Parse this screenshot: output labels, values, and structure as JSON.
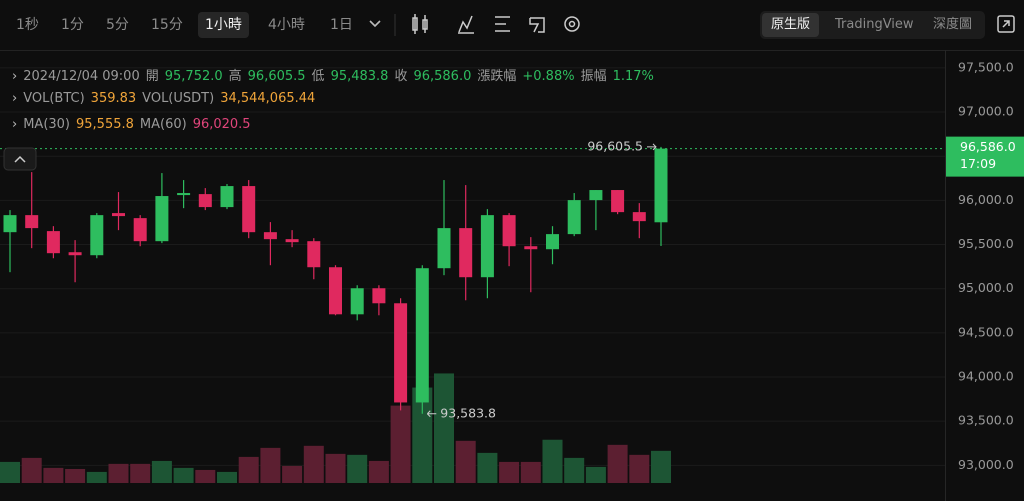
{
  "toolbar": {
    "intervals": [
      "1秒",
      "1分",
      "5分",
      "15分",
      "1小時",
      "4小時",
      "1日"
    ],
    "active_interval": 4,
    "views": [
      "原生版",
      "TradingView",
      "深度圖"
    ],
    "active_view": 0
  },
  "ohlc_header": {
    "time": "2024/12/04 09:00",
    "items": [
      {
        "label": "開",
        "value": "95,752.0"
      },
      {
        "label": "高",
        "value": "96,605.5"
      },
      {
        "label": "低",
        "value": "95,483.8"
      },
      {
        "label": "收",
        "value": "96,586.0"
      },
      {
        "label": "漲跌幅",
        "value": "+0.88%"
      },
      {
        "label": "振幅",
        "value": "1.17%"
      }
    ]
  },
  "volume_header": [
    {
      "label": "VOL(BTC)",
      "value": "359.83"
    },
    {
      "label": "VOL(USDT)",
      "value": "34,544,065.44"
    }
  ],
  "ma_header": [
    {
      "label": "MA(30)",
      "value": "95,555.8"
    },
    {
      "label": "MA(60)",
      "value": "96,020.5"
    }
  ],
  "chart_data": {
    "type": "candlestick",
    "open": [
      95640,
      95833,
      95652,
      95413,
      95379,
      95856,
      95799,
      95538,
      96060,
      96071,
      95924,
      96162,
      95640,
      95561,
      95538,
      95243,
      94710,
      95005,
      94835,
      93712,
      95232,
      95686,
      95130,
      95833,
      95481,
      95447,
      95618,
      96003,
      96117,
      95867,
      95752.0
    ],
    "high": [
      95890,
      96320,
      95708,
      95550,
      95856,
      96094,
      95833,
      96309,
      96230,
      96139,
      96185,
      96230,
      95754,
      95663,
      95572,
      95266,
      95039,
      95039,
      94892,
      95266,
      96230,
      96173,
      95901,
      95856,
      95584,
      95708,
      96083,
      96117,
      96117,
      95969,
      96605.5
    ],
    "low": [
      95187,
      95459,
      95345,
      95073,
      95345,
      95663,
      95481,
      95516,
      95912,
      95890,
      95901,
      95572,
      95266,
      95470,
      95107,
      94699,
      94642,
      94699,
      93622,
      93583.8,
      95153,
      94869,
      94892,
      95255,
      94960,
      95277,
      95595,
      95663,
      95844,
      95572,
      95483.8
    ],
    "close": [
      95833,
      95686,
      95402,
      95379,
      95833,
      95822,
      95538,
      96049,
      96083,
      95924,
      96162,
      95640,
      95561,
      95527,
      95243,
      94710,
      95005,
      94835,
      93712,
      95232,
      95686,
      95130,
      95833,
      95481,
      95447,
      95618,
      96003,
      96117,
      95867,
      95765,
      96586.0
    ],
    "volume": [
      236,
      281,
      169,
      157,
      124,
      214,
      214,
      247,
      169,
      146,
      124,
      292,
      393,
      191,
      416,
      326,
      315,
      247,
      866,
      1068,
      1226,
      472,
      337,
      236,
      236,
      484,
      281,
      180,
      427,
      315,
      359.83
    ],
    "ylim": [
      92800,
      97680
    ],
    "yticks": [
      {
        "value": 93000,
        "label": "93,000.0"
      },
      {
        "value": 93500,
        "label": "93,500.0"
      },
      {
        "value": 94000,
        "label": "94,000.0"
      },
      {
        "value": 94500,
        "label": "94,500.0"
      },
      {
        "value": 95000,
        "label": "95,000.0"
      },
      {
        "value": 95500,
        "label": "95,500.0"
      },
      {
        "value": 96000,
        "label": "96,000.0"
      },
      {
        "value": 96500,
        "label": "96,500.0"
      },
      {
        "value": 97000,
        "label": "97,000.0"
      },
      {
        "value": 97500,
        "label": "97,500.0"
      }
    ],
    "volume_ylim": [
      0,
      1600
    ],
    "grid": true,
    "up_color": "#2ebd5f",
    "down_color": "#e0295f",
    "up_volume_color": "#1d5534",
    "down_volume_color": "#5c1f31",
    "last_price": {
      "value": 96586.0,
      "label": "96,586.0"
    },
    "countdown": "17:09",
    "high_marker": {
      "value": 96605.5,
      "label": "96,605.5"
    },
    "low_marker": {
      "value": 93583.8,
      "label": "93,583.8"
    }
  }
}
